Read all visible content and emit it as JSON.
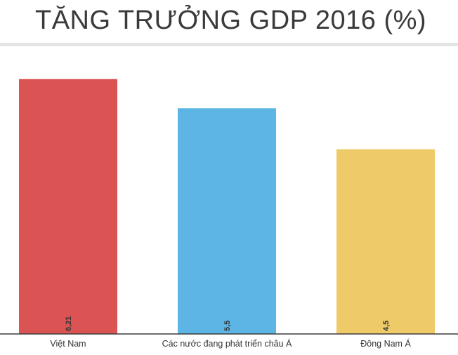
{
  "title": "TĂNG TRƯỞNG GDP 2016 (%)",
  "chart_data": {
    "type": "bar",
    "title": "TĂNG TRƯỞNG GDP 2016 (%)",
    "categories": [
      "Việt Nam",
      "Các nước đang phát triển châu Á",
      "Đông Nam Á"
    ],
    "values": [
      6.21,
      5.5,
      4.5
    ],
    "value_labels": [
      "6,21",
      "5,5",
      "4,5"
    ],
    "colors": [
      "#db5353",
      "#5cb5e4",
      "#efca69"
    ],
    "ylim": [
      0,
      7
    ],
    "grid": false,
    "legend": "none"
  }
}
